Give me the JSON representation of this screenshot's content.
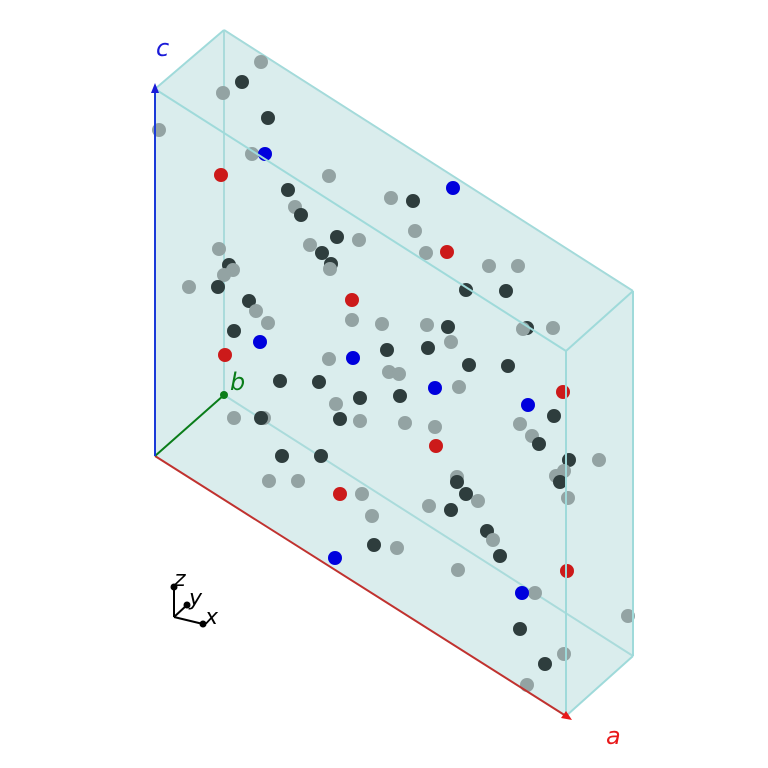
{
  "axes": {
    "a": {
      "label": "a",
      "color": "#e8191a",
      "line_color": "#c0322f"
    },
    "b": {
      "label": "b",
      "color": "#0a7d1a",
      "line_color": "#0a7d1a"
    },
    "c": {
      "label": "c",
      "color": "#1a1ad8",
      "line_color": "#1a3ad8"
    }
  },
  "triad": {
    "x": "x",
    "y": "y",
    "z": "z"
  },
  "cell": {
    "face_color": "#b5dcdc",
    "edge_color": "#9fdada"
  },
  "atom_colors": {
    "dark": "#2e3d3d",
    "light": "#93a3a3",
    "red": "#cc1a1a",
    "blue": "#0000dd"
  }
}
